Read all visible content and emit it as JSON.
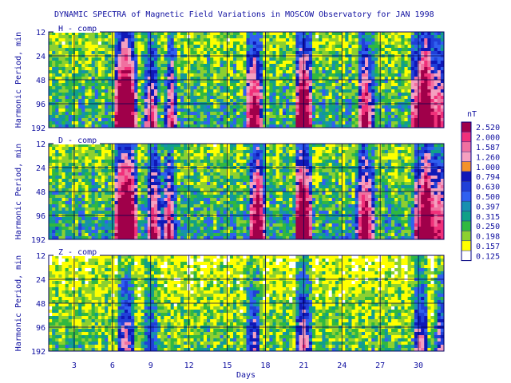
{
  "chart_data": {
    "type": "heatmap",
    "title": "DYNAMIC SPECTRA of Magnetic Field Variations in MOSCOW Observatory for JAN 1998",
    "xlabel": "Days",
    "ylabel": "Harmonic Period, min",
    "x_ticks": [
      "3",
      "6",
      "9",
      "12",
      "15",
      "18",
      "21",
      "24",
      "27",
      "30"
    ],
    "xlim": [
      1,
      32
    ],
    "y_ticks": [
      "12",
      "24",
      "48",
      "96",
      "192"
    ],
    "y_scale": "log2",
    "colorbar": {
      "unit": "nT",
      "levels": [
        "2.520",
        "2.000",
        "1.587",
        "1.260",
        "1.000",
        "0.794",
        "0.630",
        "0.500",
        "0.397",
        "0.315",
        "0.250",
        "0.198",
        "0.157",
        "0.125"
      ],
      "colors": [
        "#a0004a",
        "#f0307a",
        "#f070a0",
        "#f5a0c0",
        "#f4922a",
        "#1018b8",
        "#2040d8",
        "#3060f0",
        "#1890b0",
        "#10a088",
        "#30b840",
        "#8cd030",
        "#ffff00",
        "#ffffff"
      ]
    },
    "panels": [
      {
        "label": "H - comp",
        "storm_days": [
          [
            6.5,
            7.5,
            3.0
          ],
          [
            8.9,
            9.2,
            1.5
          ],
          [
            10.5,
            10.8,
            1.3
          ],
          [
            16.8,
            17.4,
            2.0
          ],
          [
            20.7,
            21.3,
            2.4
          ],
          [
            25.6,
            26.1,
            1.8
          ],
          [
            29.8,
            31.2,
            2.6
          ],
          [
            31.6,
            31.9,
            1.5
          ]
        ],
        "background": 0.35
      },
      {
        "label": "D - comp",
        "storm_days": [
          [
            6.5,
            7.6,
            3.0
          ],
          [
            9.0,
            9.4,
            1.6
          ],
          [
            10.2,
            10.6,
            1.4
          ],
          [
            17.0,
            17.7,
            2.2
          ],
          [
            20.6,
            21.3,
            2.6
          ],
          [
            25.5,
            26.2,
            2.0
          ],
          [
            29.9,
            31.3,
            2.4
          ],
          [
            31.6,
            31.9,
            1.6
          ]
        ],
        "background": 0.4
      },
      {
        "label": "Z - comp",
        "storm_days": [
          [
            6.8,
            7.3,
            1.2
          ],
          [
            8.9,
            9.1,
            0.8
          ],
          [
            16.9,
            17.3,
            1.0
          ],
          [
            20.8,
            21.2,
            1.3
          ],
          [
            29.9,
            30.4,
            1.2
          ],
          [
            31.7,
            31.9,
            0.9
          ]
        ],
        "background": 0.18
      }
    ]
  }
}
